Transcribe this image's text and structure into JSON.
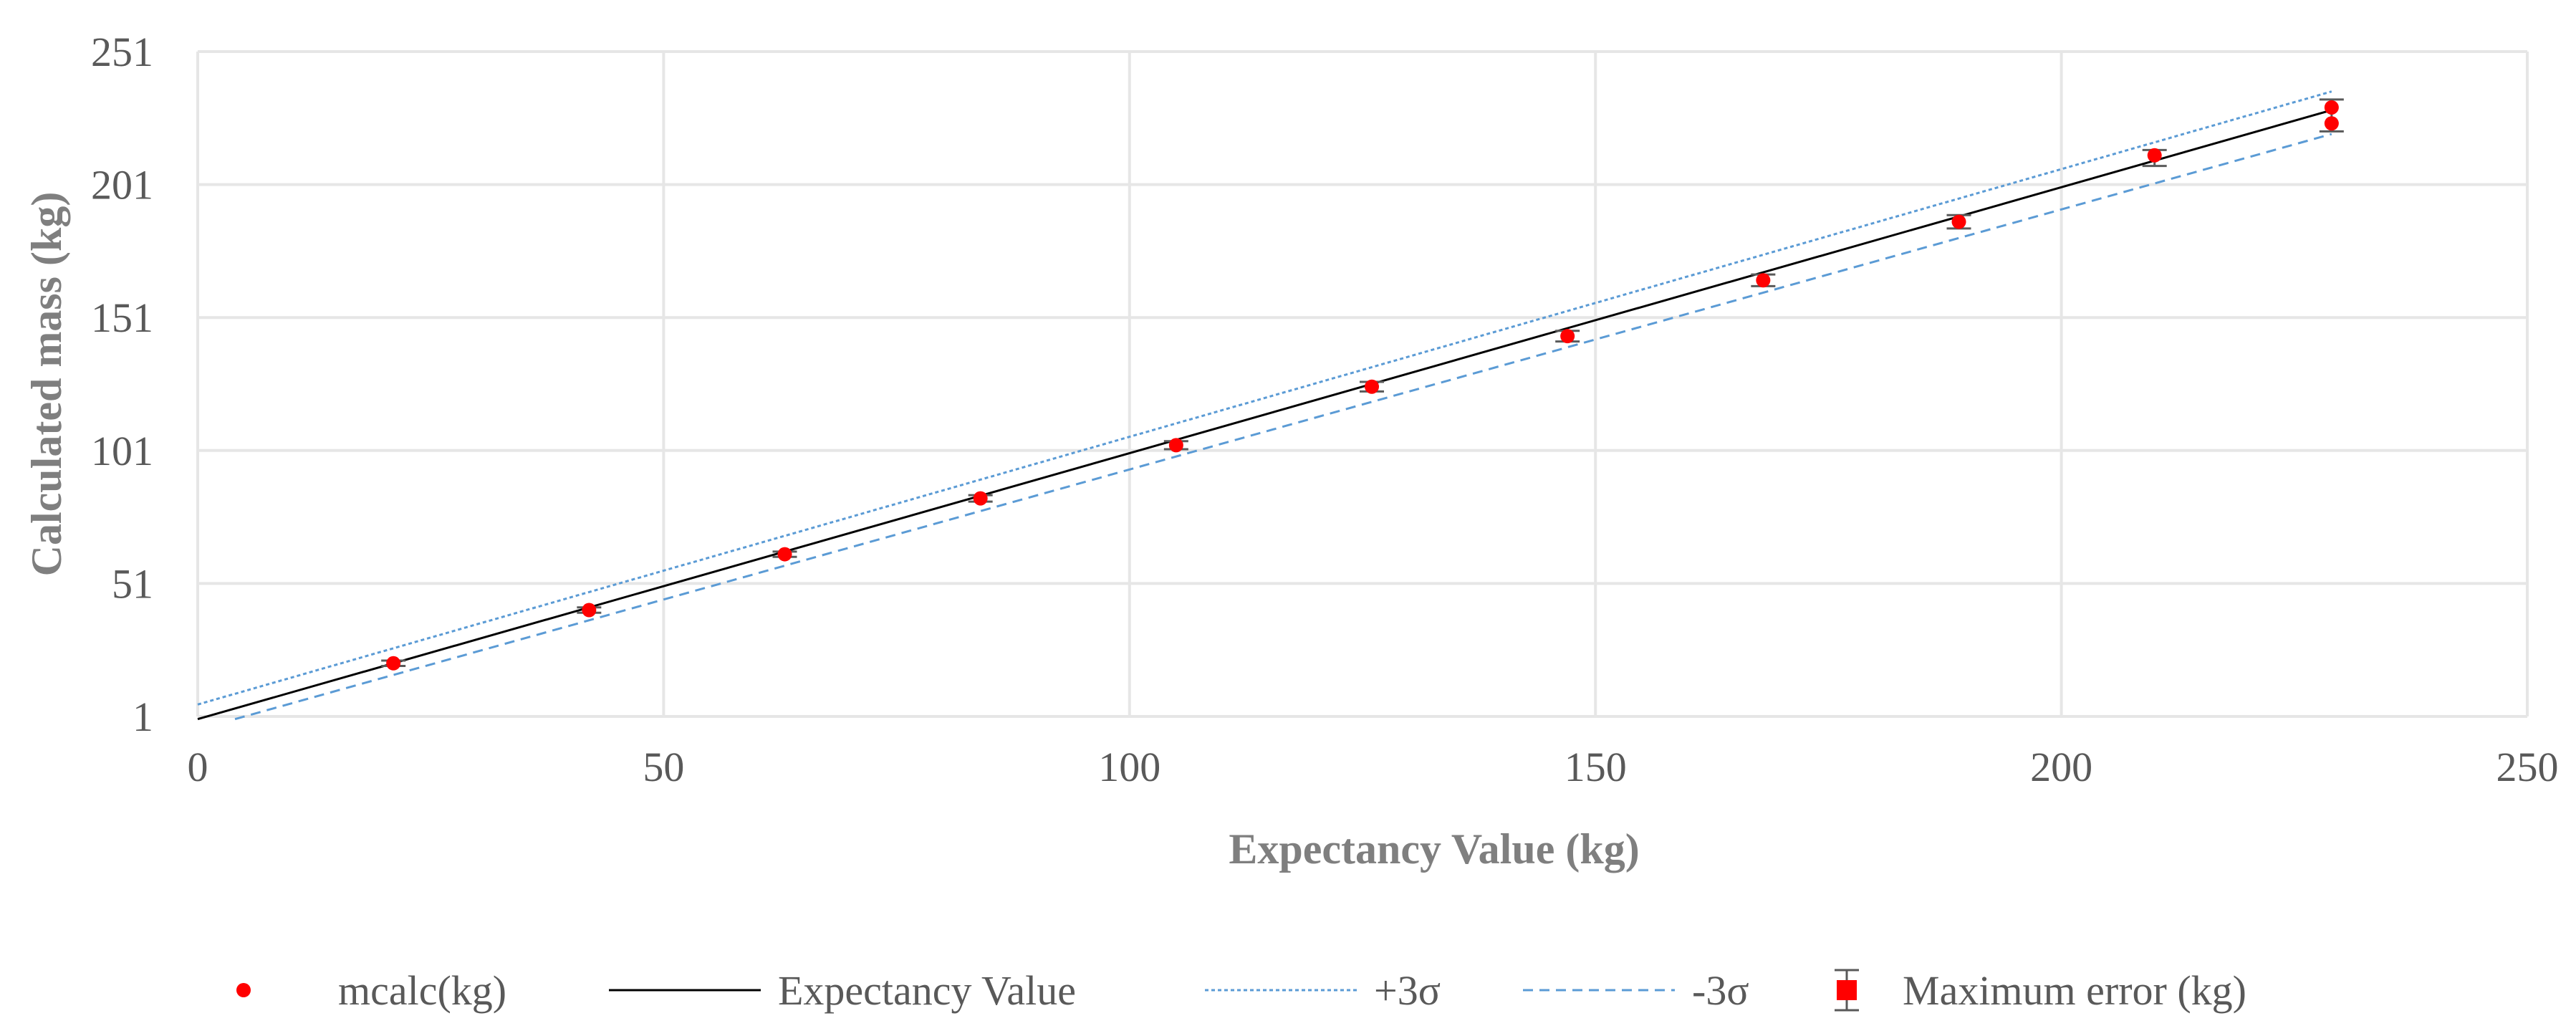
{
  "chart_data": {
    "type": "scatter",
    "title": "",
    "xlabel": "Expectancy Value (kg)",
    "ylabel": "Calculated mass (kg)",
    "xlim": [
      0,
      250
    ],
    "ylim": [
      1,
      251
    ],
    "xticks": [
      0,
      50,
      100,
      150,
      200,
      250
    ],
    "yticks": [
      1,
      51,
      101,
      151,
      201,
      251
    ],
    "xtick_labels": [
      "0",
      "50",
      "100",
      "150",
      "200",
      "250"
    ],
    "ytick_labels": [
      "1",
      "51",
      "101",
      "151",
      "201",
      "251"
    ],
    "grid": true,
    "legend_position": "bottom",
    "series": [
      {
        "name": "mcalc(kg)",
        "kind": "points",
        "color": "#ff0000",
        "x": [
          21,
          42,
          63,
          84,
          105,
          126,
          147,
          168,
          189,
          210,
          229,
          229
        ],
        "y": [
          21,
          41,
          62,
          83,
          103,
          125,
          144,
          165,
          187,
          212,
          230,
          224
        ]
      },
      {
        "name": "Expectancy Value",
        "kind": "line",
        "color": "#000000",
        "x": [
          0,
          229
        ],
        "y": [
          0,
          229
        ]
      },
      {
        "name": "+3σ",
        "kind": "line",
        "style": "dotted",
        "color": "#5b9bd5",
        "x": [
          0,
          229
        ],
        "y": [
          5.5,
          236
        ]
      },
      {
        "name": "-3σ",
        "kind": "line",
        "style": "dashed",
        "color": "#5b9bd5",
        "x": [
          4,
          229
        ],
        "y": [
          0,
          220
        ]
      },
      {
        "name": "Maximum error (kg)",
        "kind": "errorbar",
        "color": "#595959",
        "x": [
          21,
          42,
          63,
          84,
          105,
          126,
          147,
          168,
          189,
          210,
          229
        ],
        "y": [
          21,
          41,
          62,
          83,
          103,
          125,
          144,
          165,
          187,
          211,
          227
        ],
        "error": [
          1,
          1,
          1,
          1.2,
          1.5,
          1.8,
          2,
          2.2,
          2.5,
          3,
          6
        ]
      }
    ]
  }
}
